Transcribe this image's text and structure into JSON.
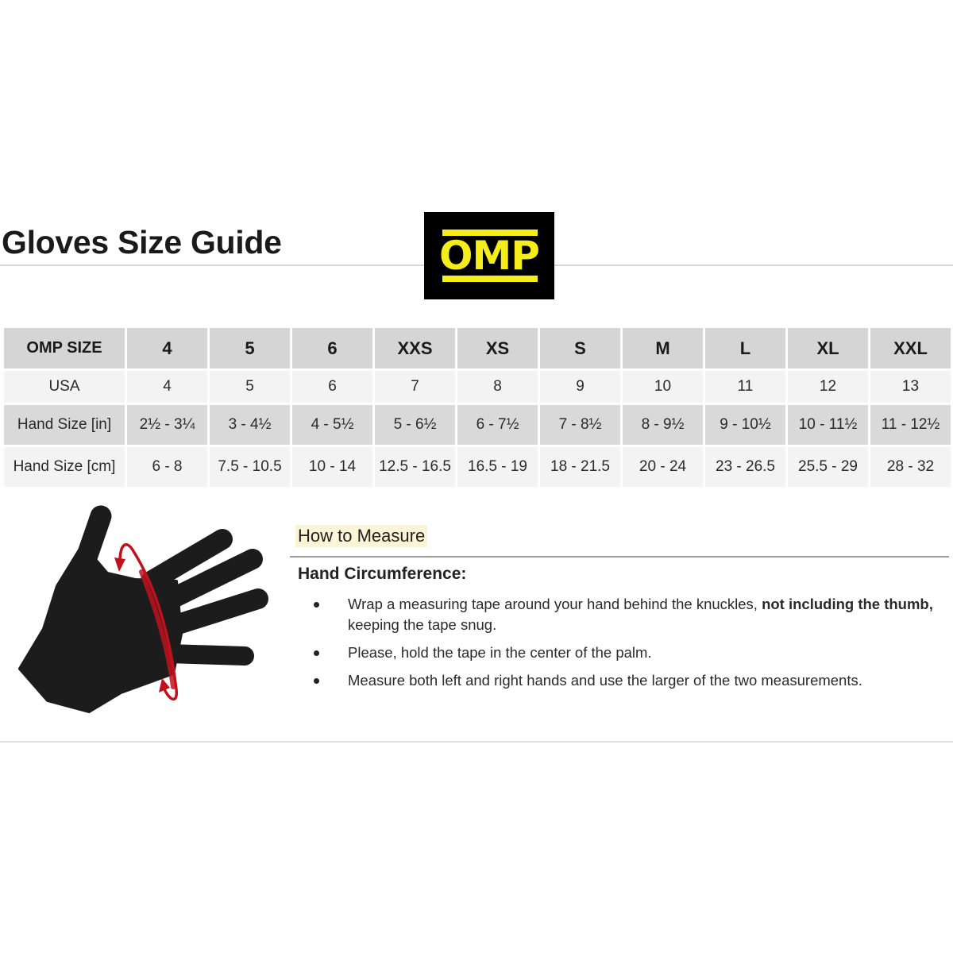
{
  "title": "Gloves Size Guide",
  "logo": {
    "text": "OMP",
    "bg_color": "#000000",
    "fg_color": "#f5ec1c"
  },
  "table": {
    "rows": [
      {
        "label": "OMP SIZE",
        "values": [
          "4",
          "5",
          "6",
          "XXS",
          "XS",
          "S",
          "M",
          "L",
          "XL",
          "XXL"
        ]
      },
      {
        "label": "USA",
        "values": [
          "4",
          "5",
          "6",
          "7",
          "8",
          "9",
          "10",
          "11",
          "12",
          "13"
        ]
      },
      {
        "label": "Hand Size [in]",
        "values": [
          "2½ - 3¼",
          "3 - 4½",
          "4 - 5½",
          "5 - 6½",
          "6 - 7½",
          "7 - 8½",
          "8 - 9½",
          "9 - 10½",
          "10 - 11½",
          "11 - 12½"
        ]
      },
      {
        "label": "Hand Size [cm]",
        "values": [
          "6 - 8",
          "7.5 - 10.5",
          "10 - 14",
          "12.5 - 16.5",
          "16.5 - 19",
          "18 - 21.5",
          "20 - 24",
          "23 - 26.5",
          "25.5 - 29",
          "28 - 32"
        ]
      }
    ]
  },
  "measure": {
    "heading": "How to Measure",
    "subheading": "Hand Circumference:",
    "bullets": [
      {
        "before": "Wrap a measuring tape around your hand behind the knuckles, ",
        "bold": "not including the thumb,",
        "after": " keeping the tape snug."
      },
      {
        "before": "Please, hold the tape in the center of the palm.",
        "bold": "",
        "after": ""
      },
      {
        "before": "Measure both left and right hands and use the larger of the two measurements.",
        "bold": "",
        "after": ""
      }
    ],
    "tape_color": "#c0121c"
  }
}
